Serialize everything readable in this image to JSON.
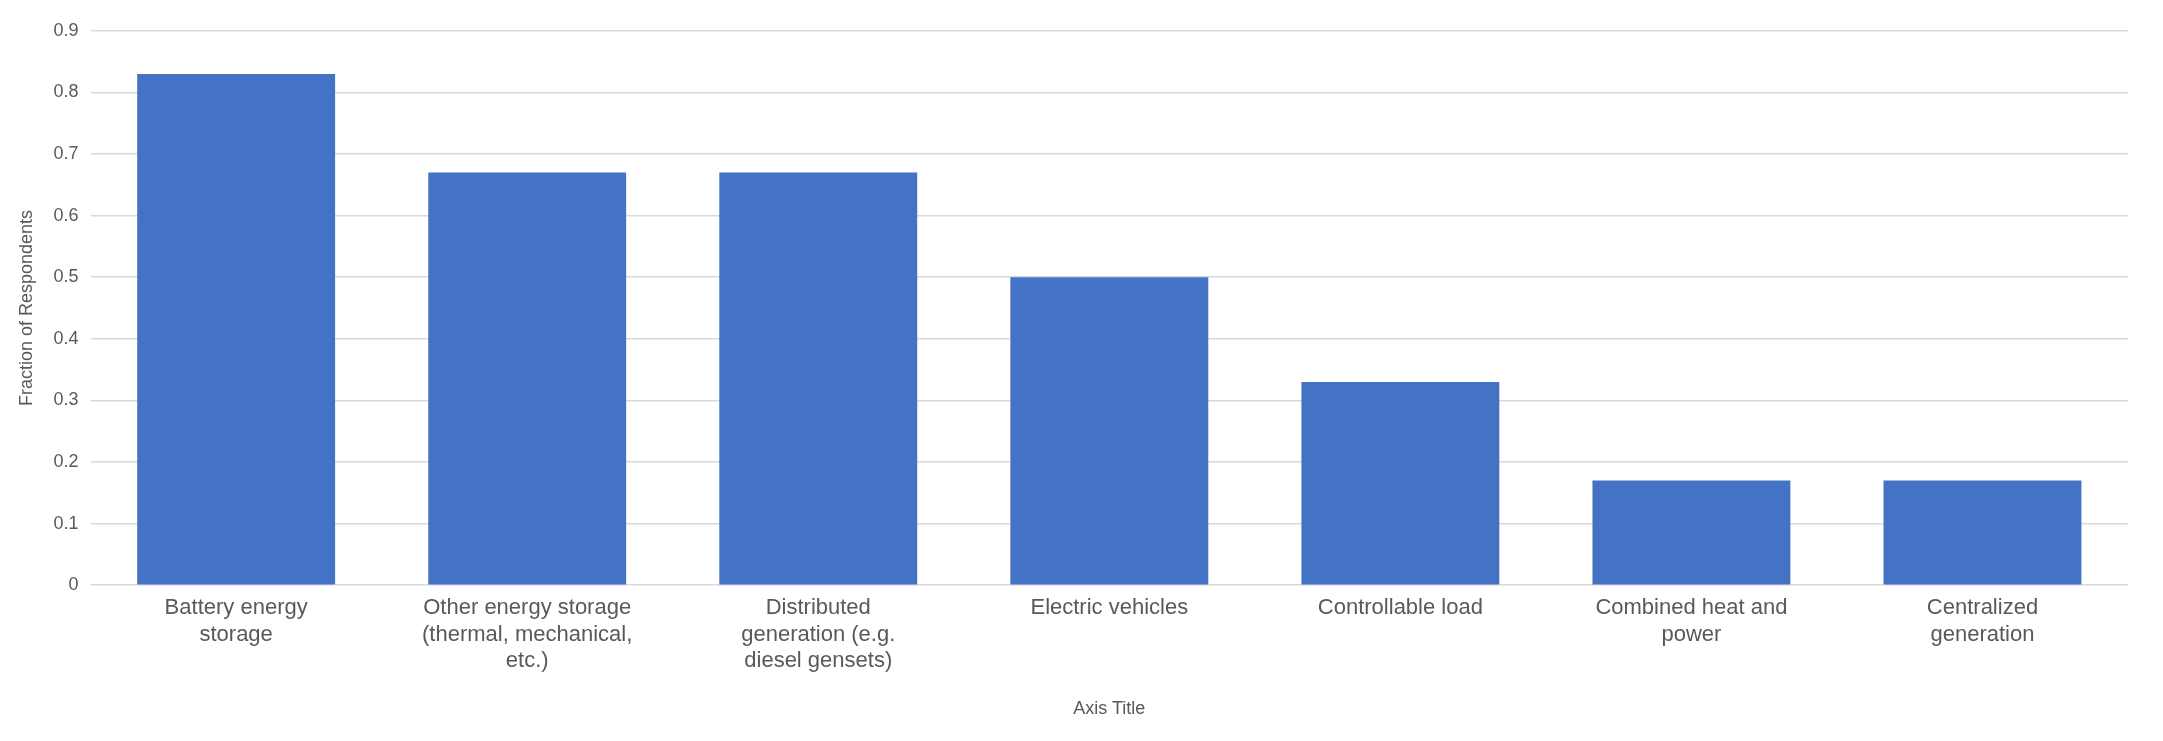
{
  "chart_data": {
    "type": "bar",
    "categories": [
      "Battery energy storage",
      "Other energy storage (thermal, mechanical, etc.)",
      "Distributed generation (e.g. diesel gensets)",
      "Electric vehicles",
      "Controllable load",
      "Combined heat and power",
      "Centralized generation"
    ],
    "values": [
      0.83,
      0.67,
      0.67,
      0.5,
      0.33,
      0.17,
      0.17
    ],
    "color": "#4472c4",
    "xlabel": "Axis Title",
    "ylabel": "Fraction of Respondents",
    "ylim": [
      0,
      0.9
    ],
    "yticks": [
      0,
      0.1,
      0.2,
      0.3,
      0.4,
      0.5,
      0.6,
      0.7,
      0.8,
      0.9
    ],
    "grid": "y",
    "legend": false
  }
}
